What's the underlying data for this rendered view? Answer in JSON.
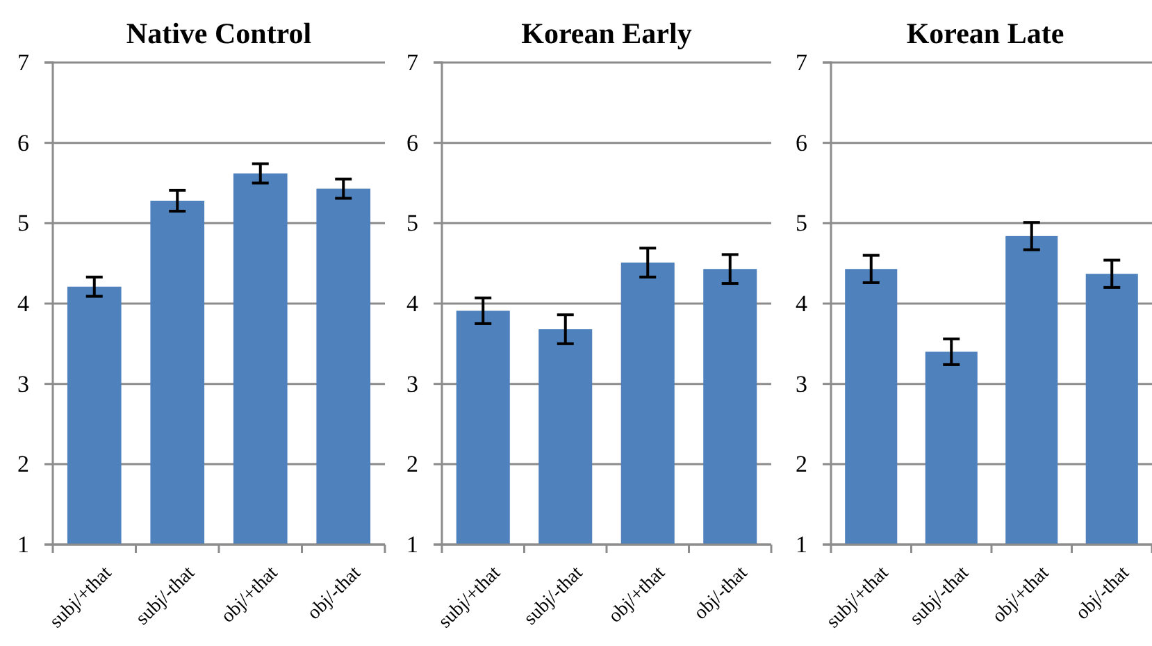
{
  "chart_data": [
    {
      "type": "bar",
      "title": "Native Control",
      "categories": [
        "subj/+that",
        "subj/-that",
        "obj/+that",
        "obj/-that"
      ],
      "values": [
        4.21,
        5.28,
        5.62,
        5.43
      ],
      "errors": [
        0.12,
        0.13,
        0.12,
        0.12
      ],
      "color": "#4f81bd",
      "ylim": [
        1,
        7
      ],
      "yticks": [
        1,
        2,
        3,
        4,
        5,
        6,
        7
      ],
      "grid": "y"
    },
    {
      "type": "bar",
      "title": "Korean Early",
      "categories": [
        "subj/+that",
        "subj/-that",
        "obj/+that",
        "obj/-that"
      ],
      "values": [
        3.91,
        3.68,
        4.51,
        4.43
      ],
      "errors": [
        0.16,
        0.18,
        0.18,
        0.18
      ],
      "color": "#4f81bd",
      "ylim": [
        1,
        7
      ],
      "yticks": [
        1,
        2,
        3,
        4,
        5,
        6,
        7
      ],
      "grid": "y"
    },
    {
      "type": "bar",
      "title": "Korean Late",
      "categories": [
        "subj/+that",
        "subj/-that",
        "obj/+that",
        "obj/-that"
      ],
      "values": [
        4.43,
        3.4,
        4.84,
        4.37
      ],
      "errors": [
        0.17,
        0.16,
        0.17,
        0.17
      ],
      "color": "#4f81bd",
      "ylim": [
        1,
        7
      ],
      "yticks": [
        1,
        2,
        3,
        4,
        5,
        6,
        7
      ],
      "grid": "y"
    }
  ]
}
